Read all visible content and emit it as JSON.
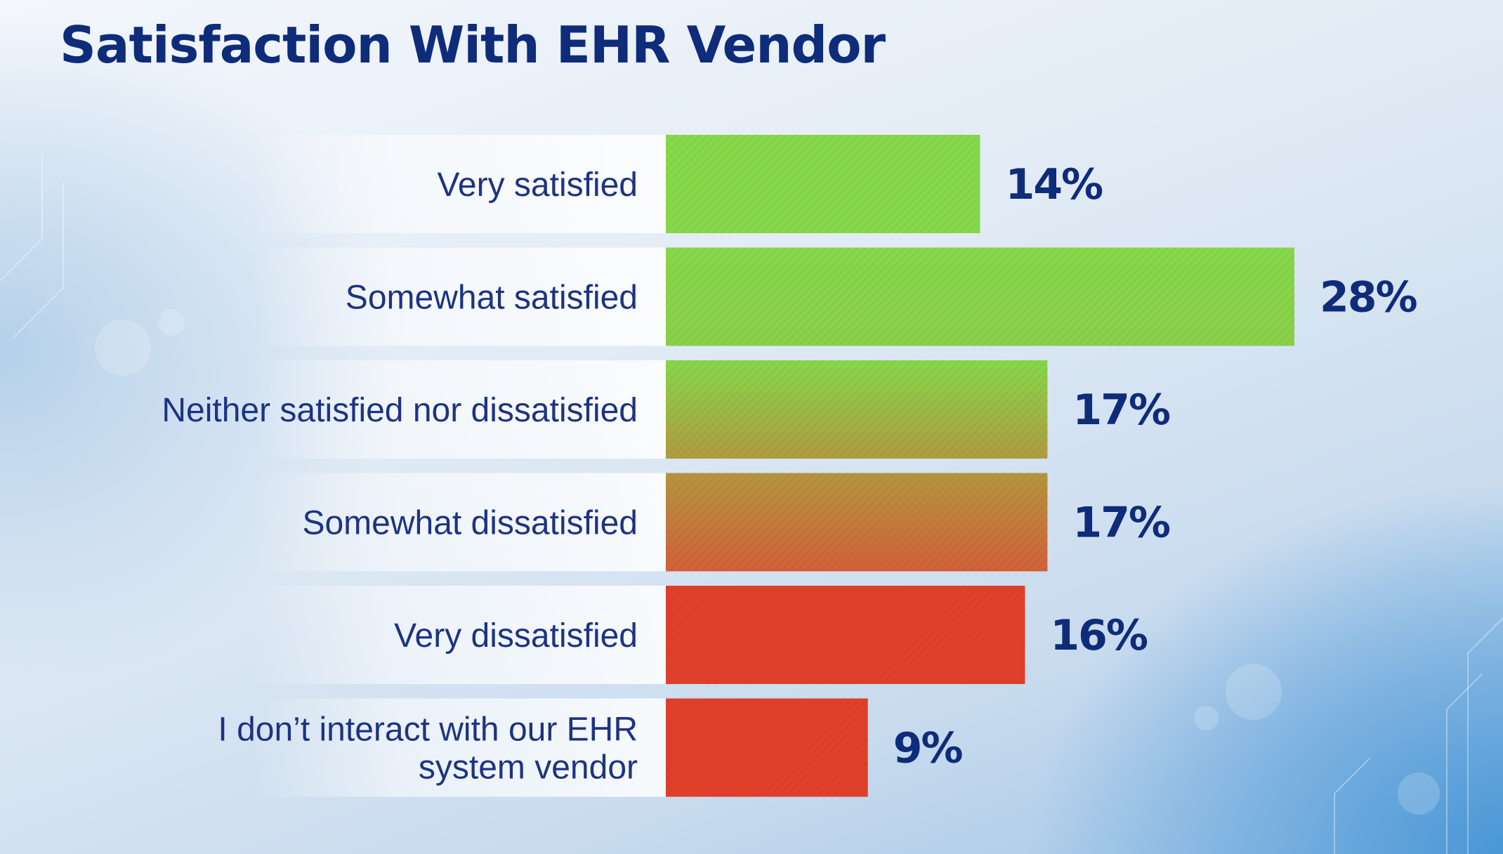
{
  "colors": {
    "title": "#0f2c7a",
    "label": "#1d3382",
    "bar_green": "#86d84a",
    "bar_olive": "#a8ae44",
    "bar_orange": "#c8753a",
    "bar_red": "#e0402a"
  },
  "chart_data": {
    "type": "bar",
    "orientation": "horizontal",
    "title": "Satisfaction With EHR Vendor",
    "xlabel": "",
    "ylabel": "",
    "categories": [
      "Very satisfied",
      "Somewhat satisfied",
      "Neither satisfied nor dissatisfied",
      "Somewhat dissatisfied",
      "Very dissatisfied",
      "I don’t interact with our EHR system vendor"
    ],
    "category_lines": [
      [
        "Very satisfied"
      ],
      [
        "Somewhat satisfied"
      ],
      [
        "Neither satisfied nor dissatisfied"
      ],
      [
        "Somewhat dissatisfied"
      ],
      [
        "Very dissatisfied"
      ],
      [
        "I don’t interact with our EHR",
        "system vendor"
      ]
    ],
    "values": [
      14,
      28,
      17,
      17,
      16,
      9
    ],
    "value_labels": [
      "14%",
      "28%",
      "17%",
      "17%",
      "16%",
      "9%"
    ],
    "bar_colors": [
      [
        "#86d84a",
        "#86d84a"
      ],
      [
        "#86d84a",
        "#8ad04a"
      ],
      [
        "#86d84a",
        "#b09a40"
      ],
      [
        "#b4963e",
        "#d2603a"
      ],
      [
        "#e0402a",
        "#e0402a"
      ],
      [
        "#e0402a",
        "#e0402a"
      ]
    ],
    "xlim": [
      0,
      28
    ],
    "grid": false,
    "legend": "none"
  }
}
